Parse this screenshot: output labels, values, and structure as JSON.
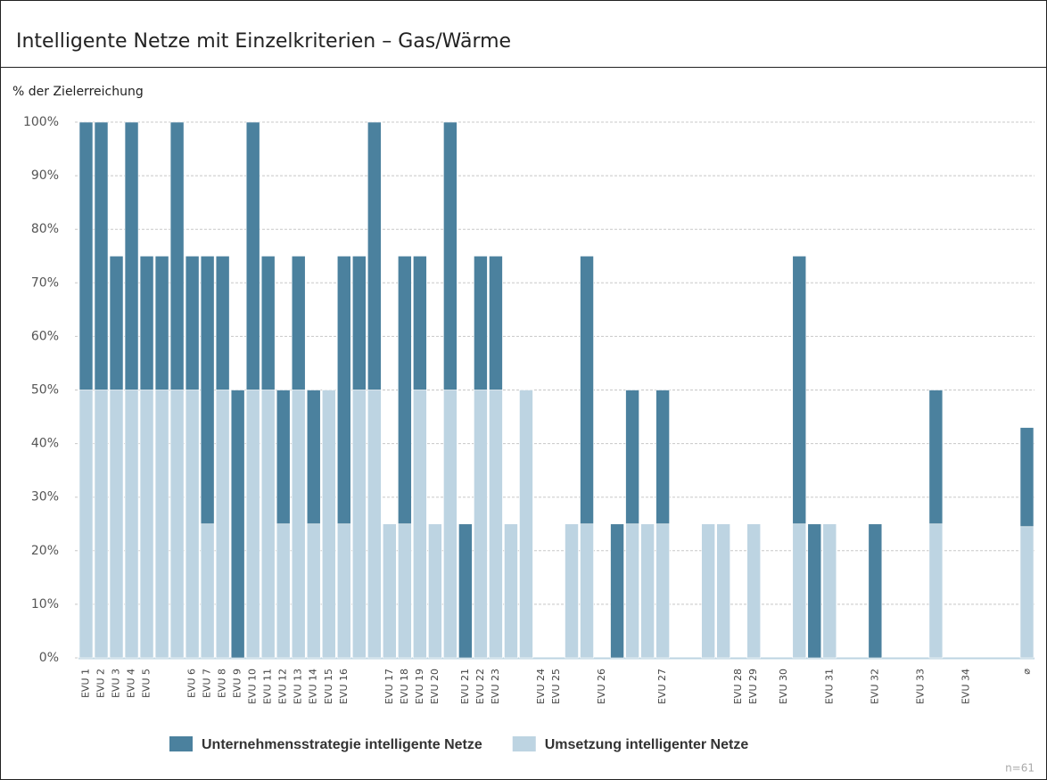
{
  "chart_data": {
    "type": "stacked_bar",
    "title": "Intelligente Netze mit Einzelkriterien – Gas/Wärme",
    "y_label": "% der Zielerreichung",
    "note": "n=61",
    "categories": [
      "EVU 1",
      "EVU 2",
      "EVU 3",
      "EVU 4",
      "EVU 5",
      null,
      null,
      "EVU 6",
      "EVU 7",
      "EVU 8",
      "EVU 9",
      "EVU 10",
      "EVU 11",
      "EVU 12",
      "EVU 13",
      "EVU 14",
      "EVU 15",
      "EVU 16",
      null,
      null,
      "EVU 17",
      "EVU 18",
      "EVU 19",
      "EVU 20",
      null,
      "EVU 21",
      "EVU 22",
      "EVU 23",
      null,
      null,
      "EVU 24",
      "EVU 25",
      null,
      null,
      "EVU 26",
      null,
      null,
      null,
      "EVU 27",
      null,
      null,
      null,
      null,
      "EVU 28",
      "EVU 29",
      null,
      "EVU 30",
      null,
      null,
      "EVU 31",
      null,
      null,
      "EVU 32",
      null,
      null,
      "EVU 33",
      null,
      null,
      "EVU 34",
      null,
      null,
      null,
      "⌀"
    ],
    "series": [
      {
        "name": "Unternehmensstrategie intelligente Netze",
        "color": "#4b819e",
        "values": [
          50,
          50,
          25,
          50,
          25,
          25,
          50,
          25,
          50,
          25,
          50,
          50,
          25,
          25,
          25,
          25,
          0,
          50,
          25,
          50,
          0,
          50,
          25,
          0,
          50,
          25,
          25,
          25,
          0,
          0,
          0,
          0,
          0,
          50,
          0,
          25,
          25,
          0,
          25,
          0,
          0,
          0,
          0,
          0,
          0,
          0,
          0,
          50,
          25,
          0,
          0,
          0,
          25,
          0,
          0,
          0,
          25,
          0,
          0,
          0,
          0,
          0,
          18.5
        ]
      },
      {
        "name": "Umsetzung intelligenter Netze",
        "color": "#bdd4e2",
        "values": [
          50,
          50,
          50,
          50,
          50,
          50,
          50,
          50,
          25,
          50,
          0,
          50,
          50,
          25,
          50,
          25,
          50,
          25,
          50,
          50,
          25,
          25,
          50,
          25,
          50,
          0,
          50,
          50,
          25,
          50,
          0,
          0,
          25,
          25,
          0,
          0,
          25,
          25,
          25,
          0,
          0,
          25,
          25,
          0,
          25,
          0,
          0,
          25,
          0,
          25,
          0,
          0,
          0,
          0,
          0,
          0,
          25,
          0,
          0,
          0,
          0,
          0,
          24.5
        ]
      }
    ],
    "stack_order": [
      1,
      0
    ],
    "ylim": [
      0,
      100
    ],
    "yticks": [
      {
        "value": 0,
        "label": "0%"
      },
      {
        "value": 10,
        "label": "10%"
      },
      {
        "value": 20,
        "label": "20%"
      },
      {
        "value": 30,
        "label": "30%"
      },
      {
        "value": 40,
        "label": "40%"
      },
      {
        "value": 50,
        "label": "50%"
      },
      {
        "value": 60,
        "label": "60%"
      },
      {
        "value": 70,
        "label": "70%"
      },
      {
        "value": 80,
        "label": "80%"
      },
      {
        "value": 90,
        "label": "90%"
      },
      {
        "value": 100,
        "label": "100%"
      }
    ],
    "grid": true
  }
}
